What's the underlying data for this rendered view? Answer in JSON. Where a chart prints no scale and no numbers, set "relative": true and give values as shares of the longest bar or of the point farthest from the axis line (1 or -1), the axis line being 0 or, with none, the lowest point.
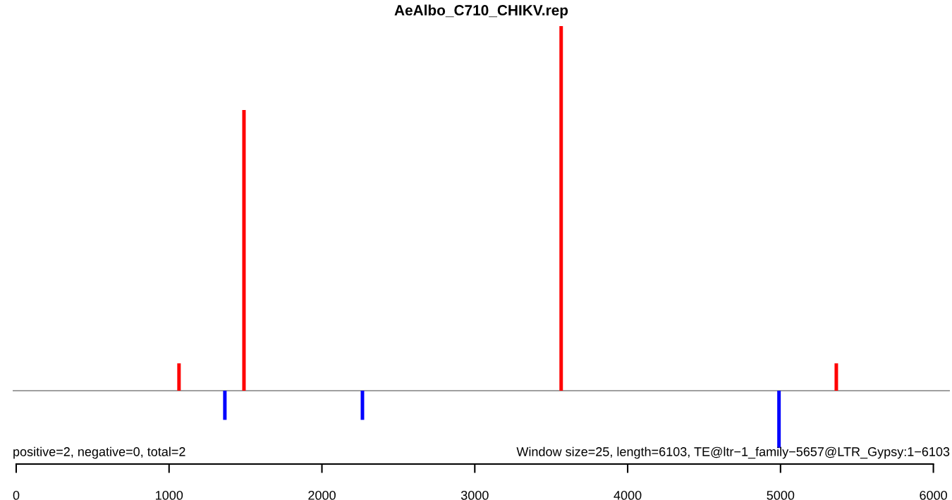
{
  "chart_data": {
    "type": "bar",
    "title": "AeAlbo_C710_CHIKV.rep",
    "relative": true,
    "series": [
      {
        "color": "#ff0000",
        "x": [
          1065,
          1490,
          3565,
          5365
        ],
        "values": [
          0.075,
          0.77,
          1,
          0.075
        ]
      },
      {
        "color": "#0000ff",
        "x": [
          1365,
          2265,
          4990
        ],
        "values": [
          -0.08,
          -0.08,
          -0.157
        ]
      }
    ],
    "xlim": [
      -23,
      6108
    ],
    "xticks": [
      0,
      1000,
      2000,
      3000,
      4000,
      5000,
      6000
    ],
    "annotations": [
      "positive=2, negative=0, total=2",
      "Window size=25, length=6103, TE@ltr−1_family−5657@LTR_Gypsy:1−6103"
    ],
    "grid": false,
    "legend": false
  }
}
